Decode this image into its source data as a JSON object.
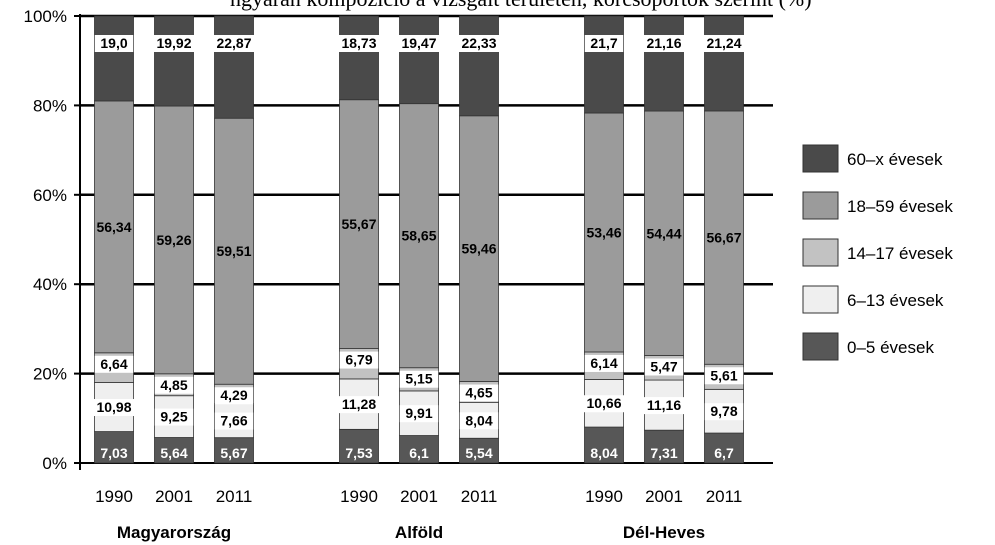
{
  "header_fragment": "ngyarán kompozíció a vizsgált területen, korcsoportok szerint (%)",
  "chart_data": {
    "type": "bar",
    "stacked": true,
    "yaxis_ticks": [
      "0%",
      "20%",
      "40%",
      "60%",
      "80%",
      "100%"
    ],
    "ylim": [
      0,
      100
    ],
    "grid": "horizontal",
    "legend_position": "right",
    "groups": [
      {
        "name": "Magyarország",
        "years": [
          "1990",
          "2001",
          "2011"
        ]
      },
      {
        "name": "Alföld",
        "years": [
          "1990",
          "2001",
          "2011"
        ]
      },
      {
        "name": "Dél-Heves",
        "years": [
          "1990",
          "2001",
          "2011"
        ]
      }
    ],
    "series": [
      {
        "name": "0–5 évesek",
        "color": "#575757",
        "label_color": "#ffffff",
        "labels": [
          "7,03",
          "5,64",
          "5,67",
          "7,53",
          "6,1",
          "5,54",
          "8,04",
          "7,31",
          "6,7"
        ],
        "values": [
          7.03,
          5.64,
          5.67,
          7.53,
          6.1,
          5.54,
          8.04,
          7.31,
          6.7
        ]
      },
      {
        "name": "6–13 évesek",
        "color": "#efefef",
        "label_color": "#000000",
        "labels": [
          "10,98",
          "9,25",
          "7,66",
          "11,28",
          "9,91",
          "8,04",
          "10,66",
          "11,16",
          "9,78"
        ],
        "values": [
          10.98,
          9.25,
          7.66,
          11.28,
          9.91,
          8.04,
          10.66,
          11.16,
          9.78
        ]
      },
      {
        "name": "14–17 évesek",
        "color": "#c2c2c2",
        "label_color": "#000000",
        "labels": [
          "6,64",
          "4,85",
          "4,29",
          "6,79",
          "5,15",
          "4,65",
          "6,14",
          "5,47",
          "5,61"
        ],
        "values": [
          6.64,
          4.85,
          4.29,
          6.79,
          5.15,
          4.65,
          6.14,
          5.47,
          5.61
        ]
      },
      {
        "name": "18–59 évesek",
        "color": "#9b9b9b",
        "label_color": "#000000",
        "labels": [
          "56,34",
          "59,26",
          "59,51",
          "55,67",
          "58,65",
          "59,46",
          "53,46",
          "54,44",
          "56,67"
        ],
        "values": [
          56.34,
          59.26,
          59.51,
          55.67,
          58.65,
          59.46,
          53.46,
          54.44,
          56.67
        ]
      },
      {
        "name": "60–x évesek",
        "color": "#4a4a4a",
        "label_color": "#000000",
        "labels": [
          "19,0",
          "19,92",
          "22,87",
          "18,73",
          "19,47",
          "22,33",
          "21,7",
          "21,16",
          "21,24"
        ],
        "values": [
          19.0,
          19.92,
          22.87,
          18.73,
          19.47,
          22.33,
          21.7,
          21.16,
          21.24
        ]
      }
    ],
    "legend_order": [
      "60–x évesek",
      "18–59 évesek",
      "14–17 évesek",
      "6–13 évesek",
      "0–5 évesek"
    ]
  }
}
